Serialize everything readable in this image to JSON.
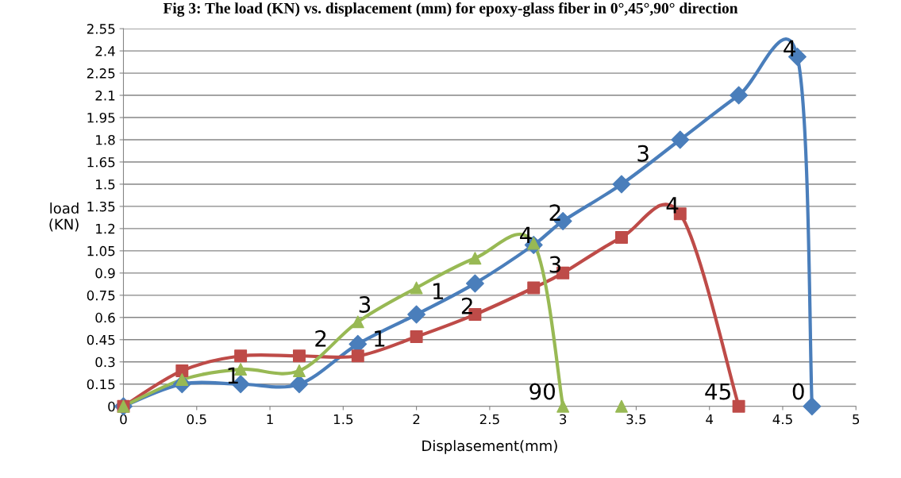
{
  "chart_data": {
    "type": "line",
    "title": "Fig 3: The load (KN) vs. displacement (mm) for epoxy-glass fiber in 0°,45°,90° direction",
    "xlabel": "Displasement(mm)",
    "ylabel": "load\n(KN)",
    "xlim": [
      0,
      5
    ],
    "xticks": [
      0,
      0.5,
      1,
      1.5,
      2,
      2.5,
      3,
      3.5,
      4,
      4.5,
      5
    ],
    "ylim": [
      0,
      2.55
    ],
    "yticks": [
      0,
      0.15,
      0.3,
      0.45,
      0.6,
      0.75,
      0.9,
      1.05,
      1.2,
      1.35,
      1.5,
      1.65,
      1.8,
      1.95,
      2.1,
      2.25,
      2.4,
      2.55
    ],
    "grid": "y",
    "series": [
      {
        "name": "0",
        "color": "#4a7ebb",
        "marker": "diamond",
        "x": [
          0,
          0.4,
          0.8,
          1.2,
          1.6,
          2,
          2.4,
          2.8,
          3,
          3.4,
          3.8,
          4.2,
          4.6,
          4.7
        ],
        "values": [
          0,
          0.15,
          0.15,
          0.15,
          0.42,
          0.62,
          0.83,
          1.09,
          1.25,
          1.5,
          1.8,
          2.1,
          2.36,
          0
        ]
      },
      {
        "name": "45",
        "color": "#be4b48",
        "marker": "square",
        "x": [
          0,
          0.4,
          0.8,
          1.2,
          1.6,
          2,
          2.4,
          2.8,
          3,
          3.4,
          3.8,
          4.2
        ],
        "values": [
          0,
          0.24,
          0.34,
          0.34,
          0.34,
          0.47,
          0.62,
          0.8,
          0.9,
          1.14,
          1.3,
          0
        ]
      },
      {
        "name": "90",
        "color": "#98b954",
        "marker": "triangle",
        "x": [
          0,
          0.4,
          0.8,
          1.2,
          1.6,
          2,
          2.4,
          2.8,
          3,
          3.2,
          3.4
        ],
        "values": [
          0,
          0.18,
          0.25,
          0.24,
          0.57,
          0.8,
          1.0,
          1.1,
          0,
          null,
          0
        ]
      }
    ],
    "annotations": [
      {
        "text": "1",
        "x": 0.8,
        "y": 0.15
      },
      {
        "text": "2",
        "x": 3,
        "y": 1.25
      },
      {
        "text": "3",
        "x": 3.6,
        "y": 1.65
      },
      {
        "text": "4",
        "x": 4.6,
        "y": 2.36
      },
      {
        "text": "1",
        "x": 1.8,
        "y": 0.4
      },
      {
        "text": "2",
        "x": 2.4,
        "y": 0.62
      },
      {
        "text": "3",
        "x": 3,
        "y": 0.9
      },
      {
        "text": "4",
        "x": 3.8,
        "y": 1.3
      },
      {
        "text": "2",
        "x": 1.4,
        "y": 0.4
      },
      {
        "text": "3",
        "x": 1.7,
        "y": 0.63
      },
      {
        "text": "1",
        "x": 2.2,
        "y": 0.72
      },
      {
        "text": "4",
        "x": 2.8,
        "y": 1.1
      }
    ]
  }
}
